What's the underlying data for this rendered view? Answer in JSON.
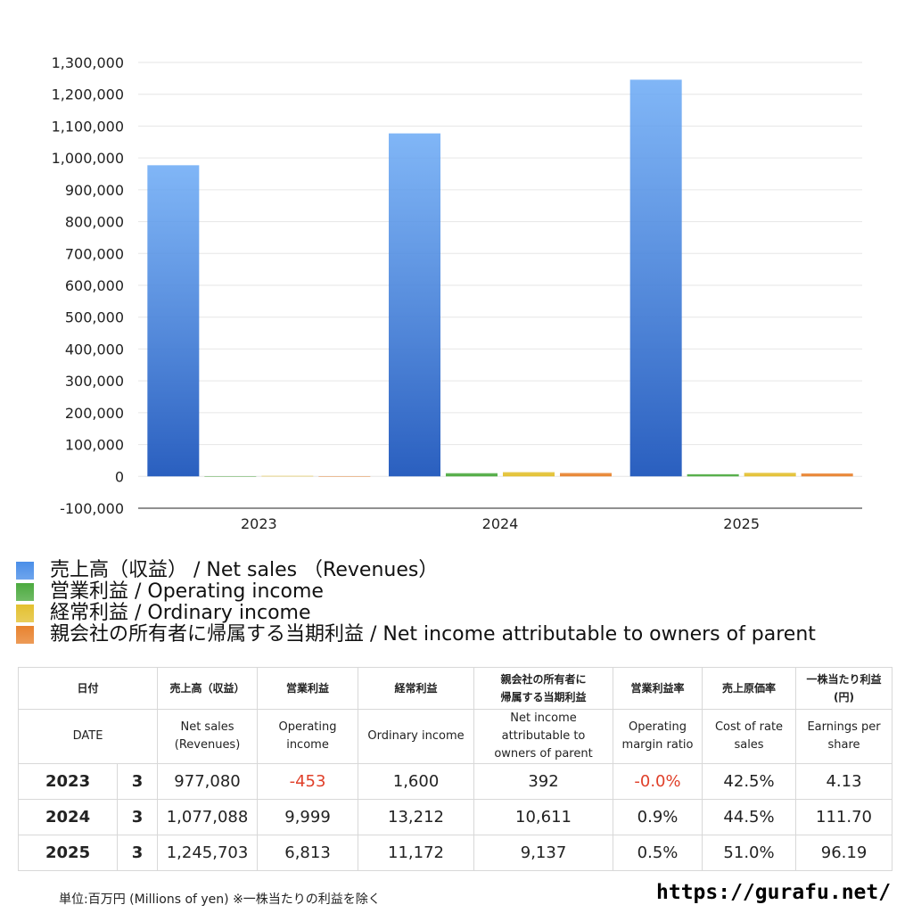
{
  "chart_data": {
    "type": "bar",
    "categories": [
      "2023",
      "2024",
      "2025"
    ],
    "series": [
      {
        "name": "売上高（収益） / Net sales （Revenues）",
        "values": [
          977080,
          1077088,
          1245703
        ],
        "color": "#4a8ee8"
      },
      {
        "name": "営業利益 / Operating income",
        "values": [
          -453,
          9999,
          6813
        ],
        "color": "#4caa3f"
      },
      {
        "name": "経常利益 / Ordinary income",
        "values": [
          1600,
          13212,
          11172
        ],
        "color": "#e3c030"
      },
      {
        "name": "親会社の所有者に帰属する当期利益 / Net income attributable to owners of parent",
        "values": [
          392,
          10611,
          9137
        ],
        "color": "#e8822e"
      }
    ],
    "ylim": [
      -100000,
      1300000
    ],
    "yticks": [
      "1,300,000",
      "1,200,000",
      "1,100,000",
      "1,000,000",
      "900,000",
      "800,000",
      "700,000",
      "600,000",
      "500,000",
      "400,000",
      "300,000",
      "200,000",
      "100,000",
      "0",
      "-100,000"
    ],
    "grid": true,
    "legend_position": "bottom"
  },
  "table": {
    "header_jp": [
      "日付",
      "売上高（収益）",
      "営業利益",
      "経常利益",
      "親会社の所有者に\n帰属する当期利益",
      "営業利益率",
      "売上原価率",
      "一株当たり利益\n(円)"
    ],
    "header_en": [
      "DATE",
      "Net sales\n(Revenues)",
      "Operating\nincome",
      "Ordinary income",
      "Net income\nattributable to\nowners of parent",
      "Operating\nmargin ratio",
      "Cost of rate\nsales",
      "Earnings per\nshare"
    ],
    "rows": [
      {
        "year": "2023",
        "month": "3",
        "cells": [
          "977,080",
          "-453",
          "1,600",
          "392",
          "-0.0%",
          "42.5%",
          "4.13"
        ],
        "negative": [
          false,
          true,
          false,
          false,
          true,
          false,
          false
        ]
      },
      {
        "year": "2024",
        "month": "3",
        "cells": [
          "1,077,088",
          "9,999",
          "13,212",
          "10,611",
          "0.9%",
          "44.5%",
          "111.70"
        ],
        "negative": [
          false,
          false,
          false,
          false,
          false,
          false,
          false
        ]
      },
      {
        "year": "2025",
        "month": "3",
        "cells": [
          "1,245,703",
          "6,813",
          "11,172",
          "9,137",
          "0.5%",
          "51.0%",
          "96.19"
        ],
        "negative": [
          false,
          false,
          false,
          false,
          false,
          false,
          false
        ]
      }
    ]
  },
  "footnote": "単位:百万円 (Millions of yen) ※一株当たりの利益を除く",
  "site": "https://gurafu.net/"
}
